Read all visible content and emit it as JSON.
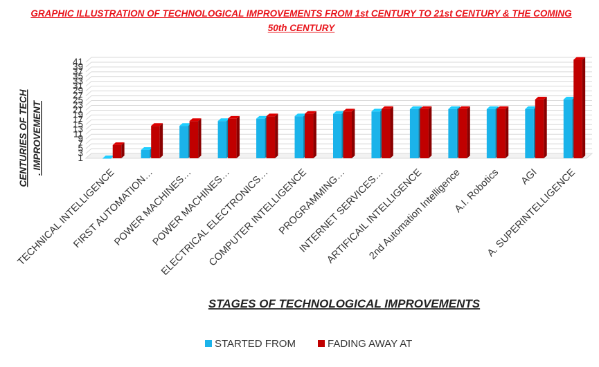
{
  "chart_data": {
    "type": "bar",
    "title": "GRAPHIC ILLUSTRATION OF TECHNOLOGICAL IMPROVEMENTS FROM 1st CENTURY TO 21st CENTURY & THE COMING 50th CENTURY",
    "xlabel": "STAGES OF TECHNOLOGICAL IMPROVEMENTS",
    "ylabel_lines": [
      "CENTURIES OF TECH",
      ". IMPROVEMENT"
    ],
    "y_ticks": [
      1,
      3,
      5,
      7,
      9,
      11,
      13,
      15,
      17,
      19,
      21,
      23,
      25,
      27,
      29,
      31,
      33,
      35,
      37,
      39,
      41
    ],
    "ylim": [
      1,
      41
    ],
    "categories": [
      "TECHNICAL INTELLIGENCE",
      "FIRST AUTOMATION…",
      "POWER MACHINES…",
      "POWER MACHINES…",
      "ELECTRICAL ELECTRONICS…",
      "COMPUTER INTELLIGENCE",
      "PROGRAMMING…",
      "INTERNET SERVICES…",
      "ARTIFICAIL INTELLIGENCE",
      "2nd Automation Intelligence",
      "A.I. Robotics",
      "AGI",
      "A. SUPERINTELLIGENCE"
    ],
    "series": [
      {
        "name": "STARTED FROM",
        "color": "#1bb3ea",
        "values": [
          1,
          4.5,
          14.5,
          16.5,
          17.5,
          18.5,
          19.5,
          20.5,
          21.5,
          21.5,
          21.5,
          21.5,
          25.5
        ]
      },
      {
        "name": "FADING AWAY AT",
        "color": "#c00000",
        "values": [
          6.5,
          14.5,
          16.5,
          17.5,
          18.5,
          19.5,
          20.5,
          21.5,
          21.5,
          21.5,
          21.5,
          25.5,
          42
        ]
      }
    ],
    "grid": true,
    "legend_position": "bottom"
  }
}
